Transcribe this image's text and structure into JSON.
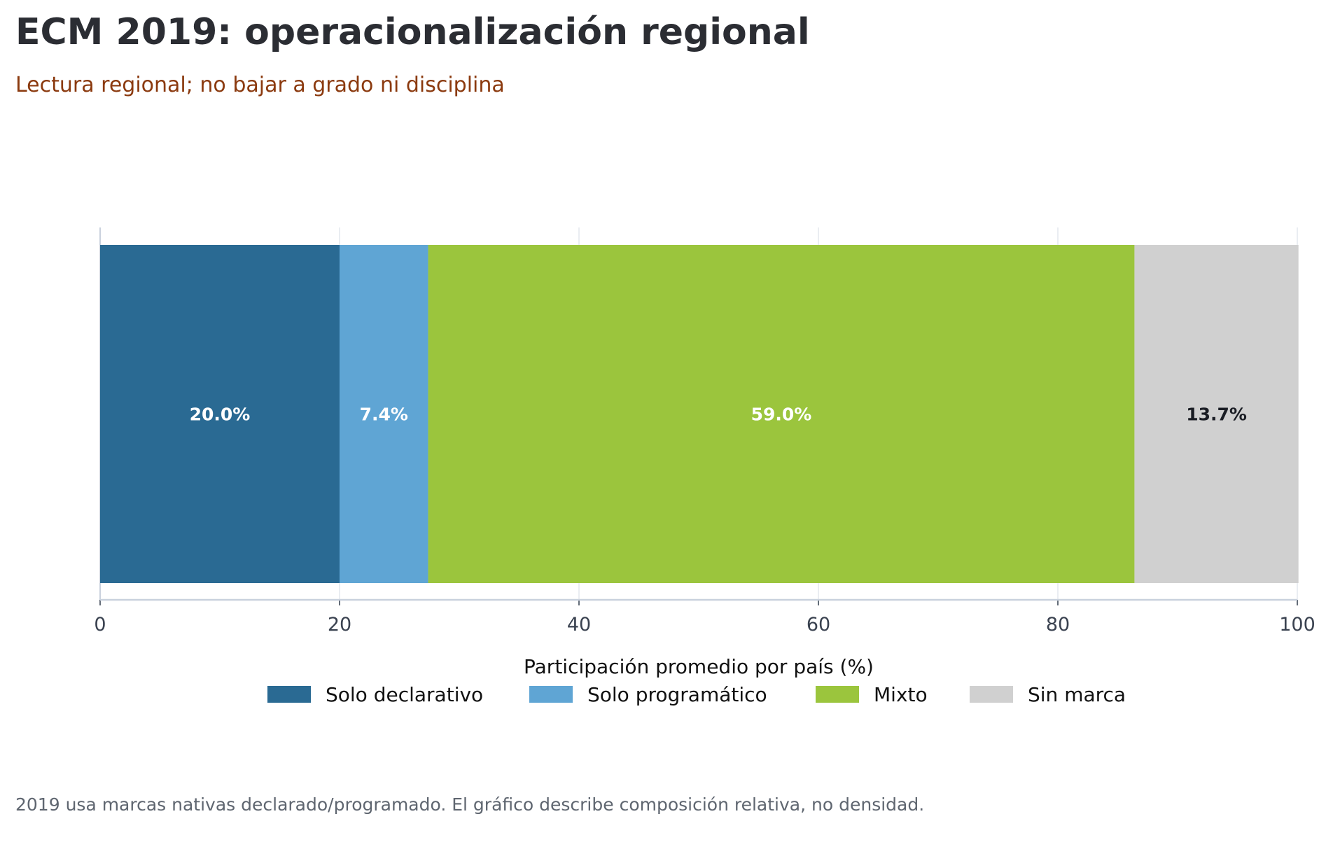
{
  "title": "ECM 2019: operacionalización regional",
  "subtitle": "Lectura regional; no bajar a grado ni disciplina",
  "footnote": "2019 usa marcas nativas declarado/programado. El gráfico describe composición relativa, no densidad.",
  "chart_data": {
    "type": "bar",
    "orientation": "horizontal",
    "stacked": true,
    "xlabel": "Participación promedio por país (%)",
    "xlim": [
      0,
      100
    ],
    "xticks": [
      "0",
      "20",
      "40",
      "60",
      "80",
      "100"
    ],
    "grid": "vertical",
    "legend_position": "bottom",
    "series": [
      {
        "name": "Solo declarativo",
        "value": 20.0,
        "label": "20.0%",
        "color": "#2a6a93",
        "label_color": "#ffffff"
      },
      {
        "name": "Solo programático",
        "value": 7.4,
        "label": "7.4%",
        "color": "#5fa5d4",
        "label_color": "#ffffff"
      },
      {
        "name": "Mixto",
        "value": 59.0,
        "label": "59.0%",
        "color": "#9bc53d",
        "label_color": "#ffffff"
      },
      {
        "name": "Sin marca",
        "value": 13.7,
        "label": "13.7%",
        "color": "#d0d0d0",
        "label_color": "#1a1d24"
      }
    ]
  }
}
